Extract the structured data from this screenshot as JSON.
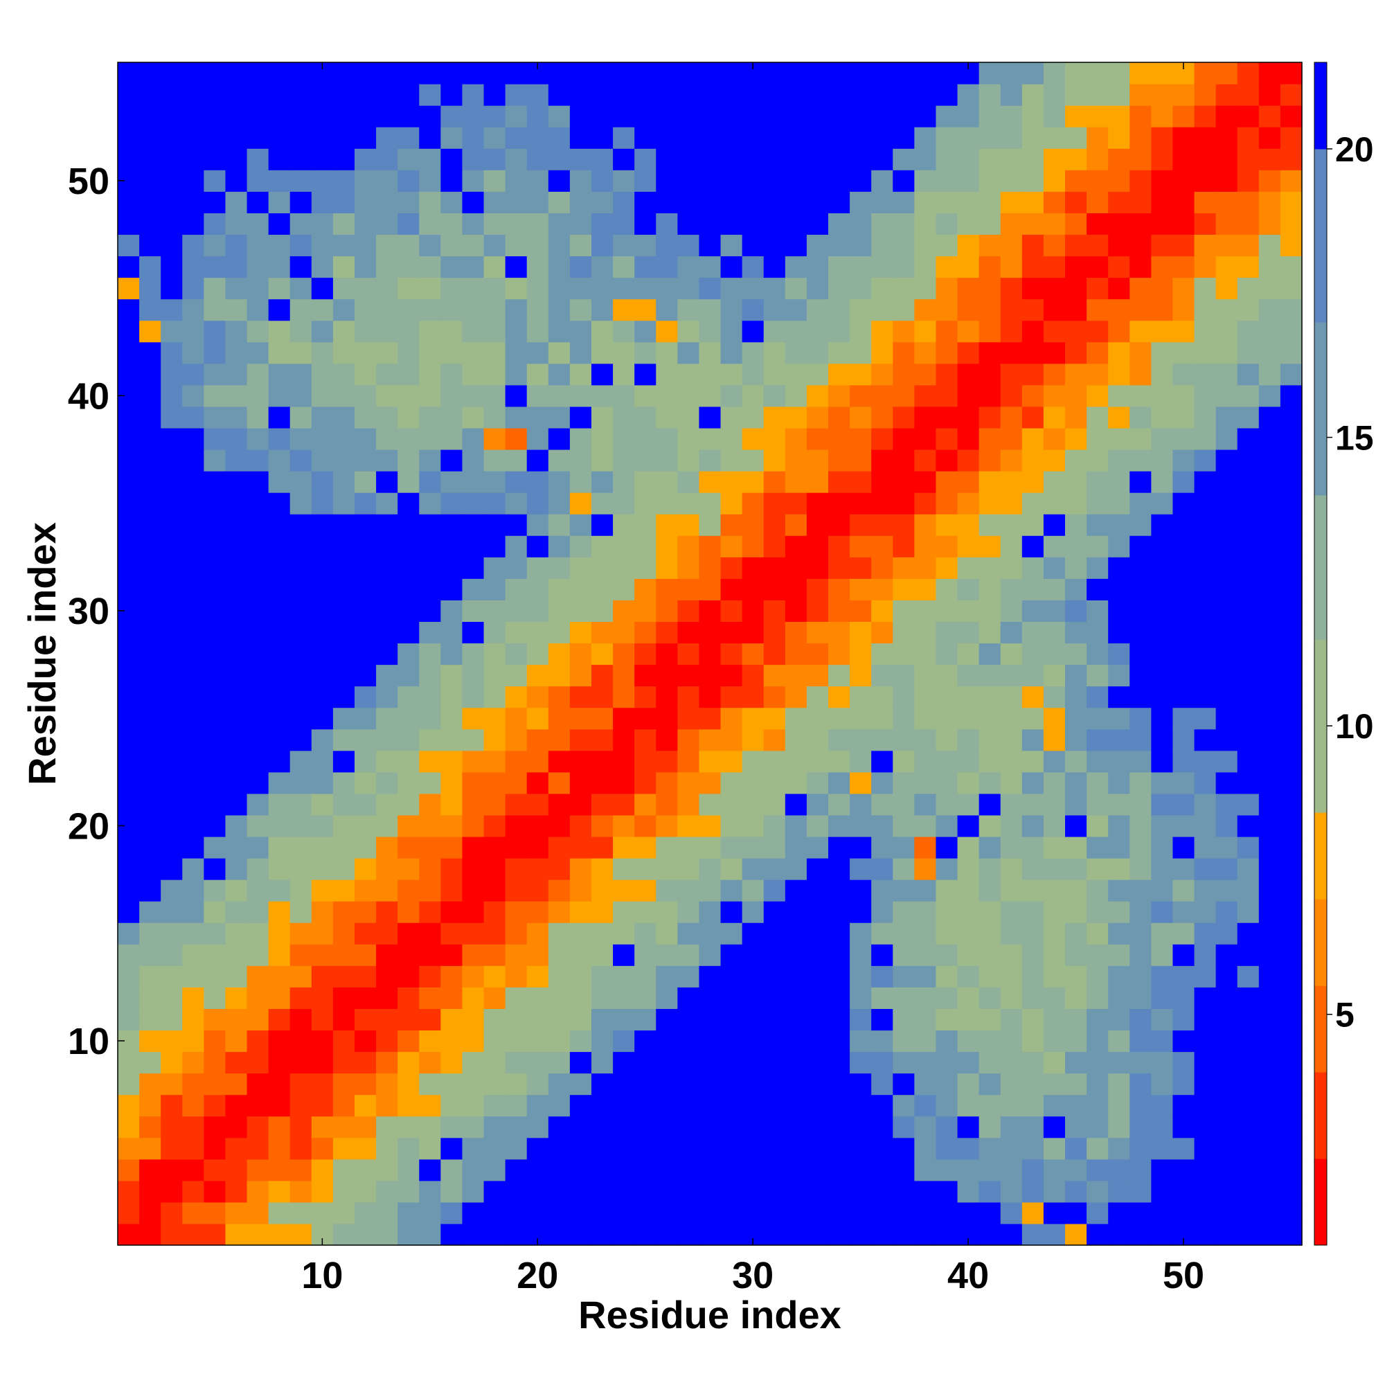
{
  "chart_data": {
    "type": "heatmap",
    "title": "",
    "xlabel": "Residue index",
    "ylabel": "Residue index",
    "n_residues": 55,
    "xlim": [
      0.5,
      55.5
    ],
    "ylim": [
      0.5,
      55.5
    ],
    "xticks": [
      10,
      20,
      30,
      40,
      50
    ],
    "yticks": [
      10,
      20,
      30,
      40,
      50
    ],
    "colorbar": {
      "label": "",
      "range": [
        1,
        21.5
      ],
      "ticks": [
        5,
        10,
        15,
        20
      ],
      "cap_above": 20,
      "levels": [
        {
          "from": 1,
          "to": 2.5,
          "color": "#ff0000"
        },
        {
          "from": 2.5,
          "to": 4,
          "color": "#ff3300"
        },
        {
          "from": 4,
          "to": 5.5,
          "color": "#ff6600"
        },
        {
          "from": 5.5,
          "to": 7,
          "color": "#ff8800"
        },
        {
          "from": 7,
          "to": 8.5,
          "color": "#ffa500"
        },
        {
          "from": 8.5,
          "to": 11.5,
          "color": "#9eb98a"
        },
        {
          "from": 11.5,
          "to": 14,
          "color": "#8fb09b"
        },
        {
          "from": 14,
          "to": 17,
          "color": "#6e98b0"
        },
        {
          "from": 17,
          "to": 20,
          "color": "#5b86bf"
        },
        {
          "from": 20,
          "to": 21.5,
          "color": "#0000ff"
        }
      ]
    },
    "values_description_free": true,
    "diagonal_value": 1,
    "background_value": 21,
    "blobs": [
      {
        "i": 14,
        "j": 42,
        "v": 11,
        "ri": 12,
        "rj": 8
      },
      {
        "i": 10,
        "j": 45,
        "v": 14,
        "ri": 10,
        "rj": 7
      },
      {
        "i": 25,
        "j": 40,
        "v": 11,
        "ri": 9,
        "rj": 8
      },
      {
        "i": 18,
        "j": 45,
        "v": 13,
        "ri": 9,
        "rj": 10
      },
      {
        "i": 42,
        "j": 14,
        "v": 11,
        "ri": 8,
        "rj": 12
      },
      {
        "i": 45,
        "j": 10,
        "v": 14,
        "ri": 7,
        "rj": 10
      },
      {
        "i": 40,
        "j": 25,
        "v": 11,
        "ri": 8,
        "rj": 9
      },
      {
        "i": 45,
        "j": 18,
        "v": 13,
        "ri": 10,
        "rj": 9
      }
    ],
    "contacts": [
      {
        "i": 18,
        "j": 38,
        "v": 6
      },
      {
        "i": 19,
        "j": 38,
        "v": 5
      },
      {
        "i": 21,
        "j": 22,
        "v": 5
      },
      {
        "i": 22,
        "j": 35,
        "v": 7
      },
      {
        "i": 24,
        "j": 44,
        "v": 7
      },
      {
        "i": 25,
        "j": 44,
        "v": 7
      },
      {
        "i": 26,
        "j": 43,
        "v": 8
      },
      {
        "i": 28,
        "j": 33,
        "v": 5
      },
      {
        "i": 38,
        "j": 18,
        "v": 6
      },
      {
        "i": 38,
        "j": 19,
        "v": 5
      },
      {
        "i": 35,
        "j": 22,
        "v": 7
      },
      {
        "i": 44,
        "j": 24,
        "v": 7
      },
      {
        "i": 44,
        "j": 25,
        "v": 7
      },
      {
        "i": 43,
        "j": 26,
        "v": 8
      },
      {
        "i": 33,
        "j": 28,
        "v": 5
      },
      {
        "i": 45,
        "j": 1,
        "v": 7
      },
      {
        "i": 1,
        "j": 45,
        "v": 7
      },
      {
        "i": 2,
        "j": 43,
        "v": 7
      },
      {
        "i": 43,
        "j": 2,
        "v": 7
      }
    ]
  }
}
